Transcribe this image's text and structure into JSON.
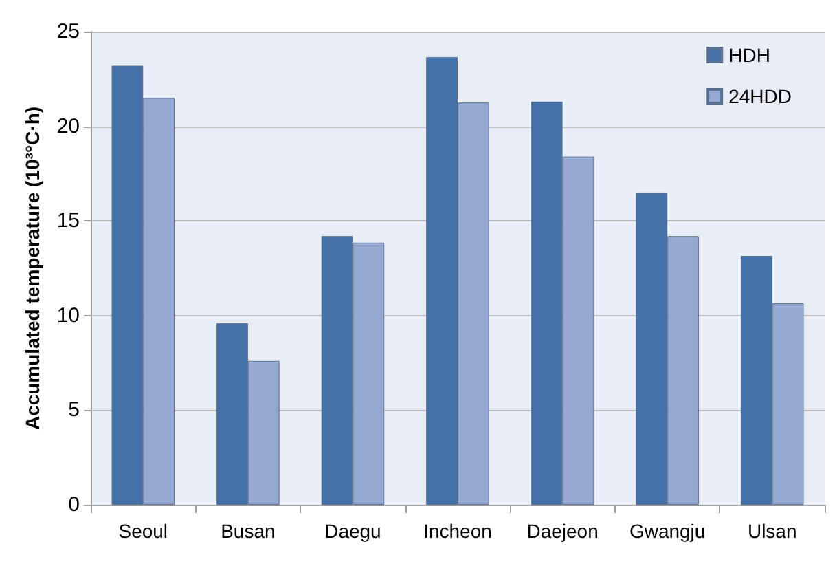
{
  "chart_data": {
    "type": "bar",
    "ylabel": "Accumulated temperature (10³°C·h)",
    "categories": [
      "Seoul",
      "Busan",
      "Daegu",
      "Incheon",
      "Daejeon",
      "Gwangju",
      "Ulsan"
    ],
    "series": [
      {
        "name": "HDH",
        "color": "#4472a8",
        "values": [
          23.2,
          9.6,
          14.2,
          23.65,
          21.3,
          16.5,
          13.15
        ]
      },
      {
        "name": "24HDD",
        "color": "#95a9d2",
        "values": [
          21.5,
          7.6,
          13.85,
          21.25,
          18.4,
          14.2,
          10.65
        ]
      }
    ],
    "ylim": [
      0,
      25
    ],
    "yticks": [
      0,
      5,
      10,
      15,
      20,
      25
    ],
    "grid": "y",
    "legend": "top right"
  }
}
